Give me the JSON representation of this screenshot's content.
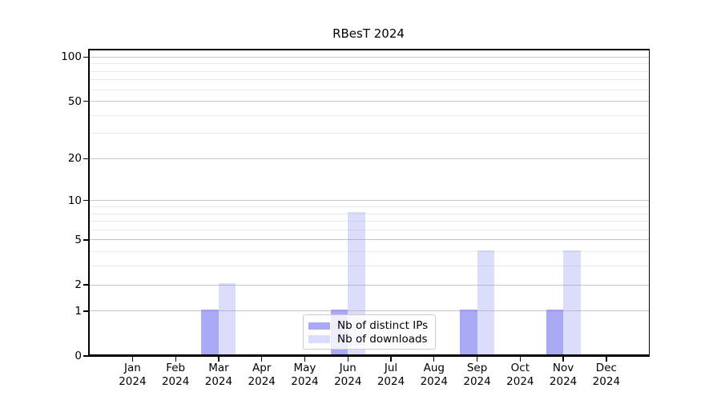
{
  "title": "RBesT 2024",
  "legend": {
    "items": [
      {
        "label": "Nb of distinct IPs",
        "color": "rgba(125,125,242,0.66)"
      },
      {
        "label": "Nb of downloads",
        "color": "rgba(130,130,242,0.28)"
      }
    ]
  },
  "chart_data": {
    "type": "bar",
    "title": "RBesT 2024",
    "categories": [
      "Jan 2024",
      "Feb 2024",
      "Mar 2024",
      "Apr 2024",
      "May 2024",
      "Jun 2024",
      "Jul 2024",
      "Aug 2024",
      "Sep 2024",
      "Oct 2024",
      "Nov 2024",
      "Dec 2024"
    ],
    "x_month_labels": [
      "Jan",
      "Feb",
      "Mar",
      "Apr",
      "May",
      "Jun",
      "Jul",
      "Aug",
      "Sep",
      "Oct",
      "Nov",
      "Dec"
    ],
    "x_year_label": "2024",
    "series": [
      {
        "name": "Nb of distinct IPs",
        "color": "rgba(125,125,242,0.66)",
        "values": [
          0,
          0,
          1,
          0,
          0,
          1,
          0,
          0,
          1,
          0,
          1,
          0
        ]
      },
      {
        "name": "Nb of downloads",
        "color": "rgba(130,130,242,0.28)",
        "values": [
          0,
          0,
          2,
          0,
          0,
          8,
          0,
          0,
          4,
          0,
          4,
          0
        ]
      }
    ],
    "xlabel": "",
    "ylabel": "",
    "y_scale": "log1p",
    "ylim": [
      0,
      113
    ],
    "y_major_ticks": [
      0,
      1,
      2,
      5,
      10,
      20,
      50,
      100
    ],
    "y_minor_gridlines": [
      3,
      4,
      6,
      7,
      8,
      9,
      30,
      40,
      60,
      70,
      80,
      90
    ],
    "grid": true,
    "legend_position": "lower-center-inside",
    "colors": {
      "major_grid": "#c6c6c6",
      "minor_grid": "#ebebeb",
      "axis": "#000000",
      "background": "#ffffff"
    }
  }
}
